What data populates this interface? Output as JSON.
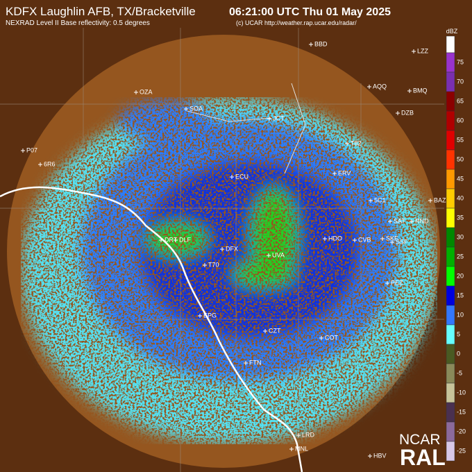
{
  "header": {
    "title": "KDFX Laughlin AFB, TX/Bracketville",
    "time": "06:21:00 UTC Thu 01 May 2025",
    "subtitle": "NEXRAD Level II Base reflectivity: 0.5 degrees",
    "credit": "(c) UCAR http://weather.rap.ucar.edu/radar/"
  },
  "legend": {
    "unit": "dBZ",
    "top_color": "#ffffff",
    "levels": [
      75,
      70,
      65,
      60,
      55,
      50,
      45,
      40,
      35,
      30,
      25,
      20,
      15,
      10,
      5,
      0,
      -5,
      -10,
      -15,
      -20,
      -25
    ],
    "colors": [
      "#9933cc",
      "#7a2fb0",
      "#8b0000",
      "#b00000",
      "#e00000",
      "#ff3300",
      "#ff9900",
      "#ffcc00",
      "#ffff00",
      "#008800",
      "#00b000",
      "#00ff00",
      "#0000dd",
      "#3377ff",
      "#66ffff",
      "#4a5a22",
      "#8a8a5a",
      "#c8c49a",
      "#4a3050",
      "#8c6a9c",
      "#d8c8e8"
    ]
  },
  "stations": [
    "BBD",
    "LZZ",
    "OZA",
    "AQQ",
    "BMQ",
    "SOA",
    "JCT",
    "DZB",
    "P07",
    "T82",
    "6R6",
    "ERV",
    "ECU",
    "5C1",
    "BAZ",
    "SAT",
    "RND",
    "DRT",
    "DLF",
    "HDO",
    "CVB",
    "SKF",
    "SSF",
    "DFX",
    "UVA",
    "T70",
    "PEZ",
    "EPG",
    "CZT",
    "COT",
    "FTN",
    "LRD",
    "MNL",
    "HBV"
  ],
  "logo": {
    "top": "NCAR",
    "bottom": "RAL"
  }
}
